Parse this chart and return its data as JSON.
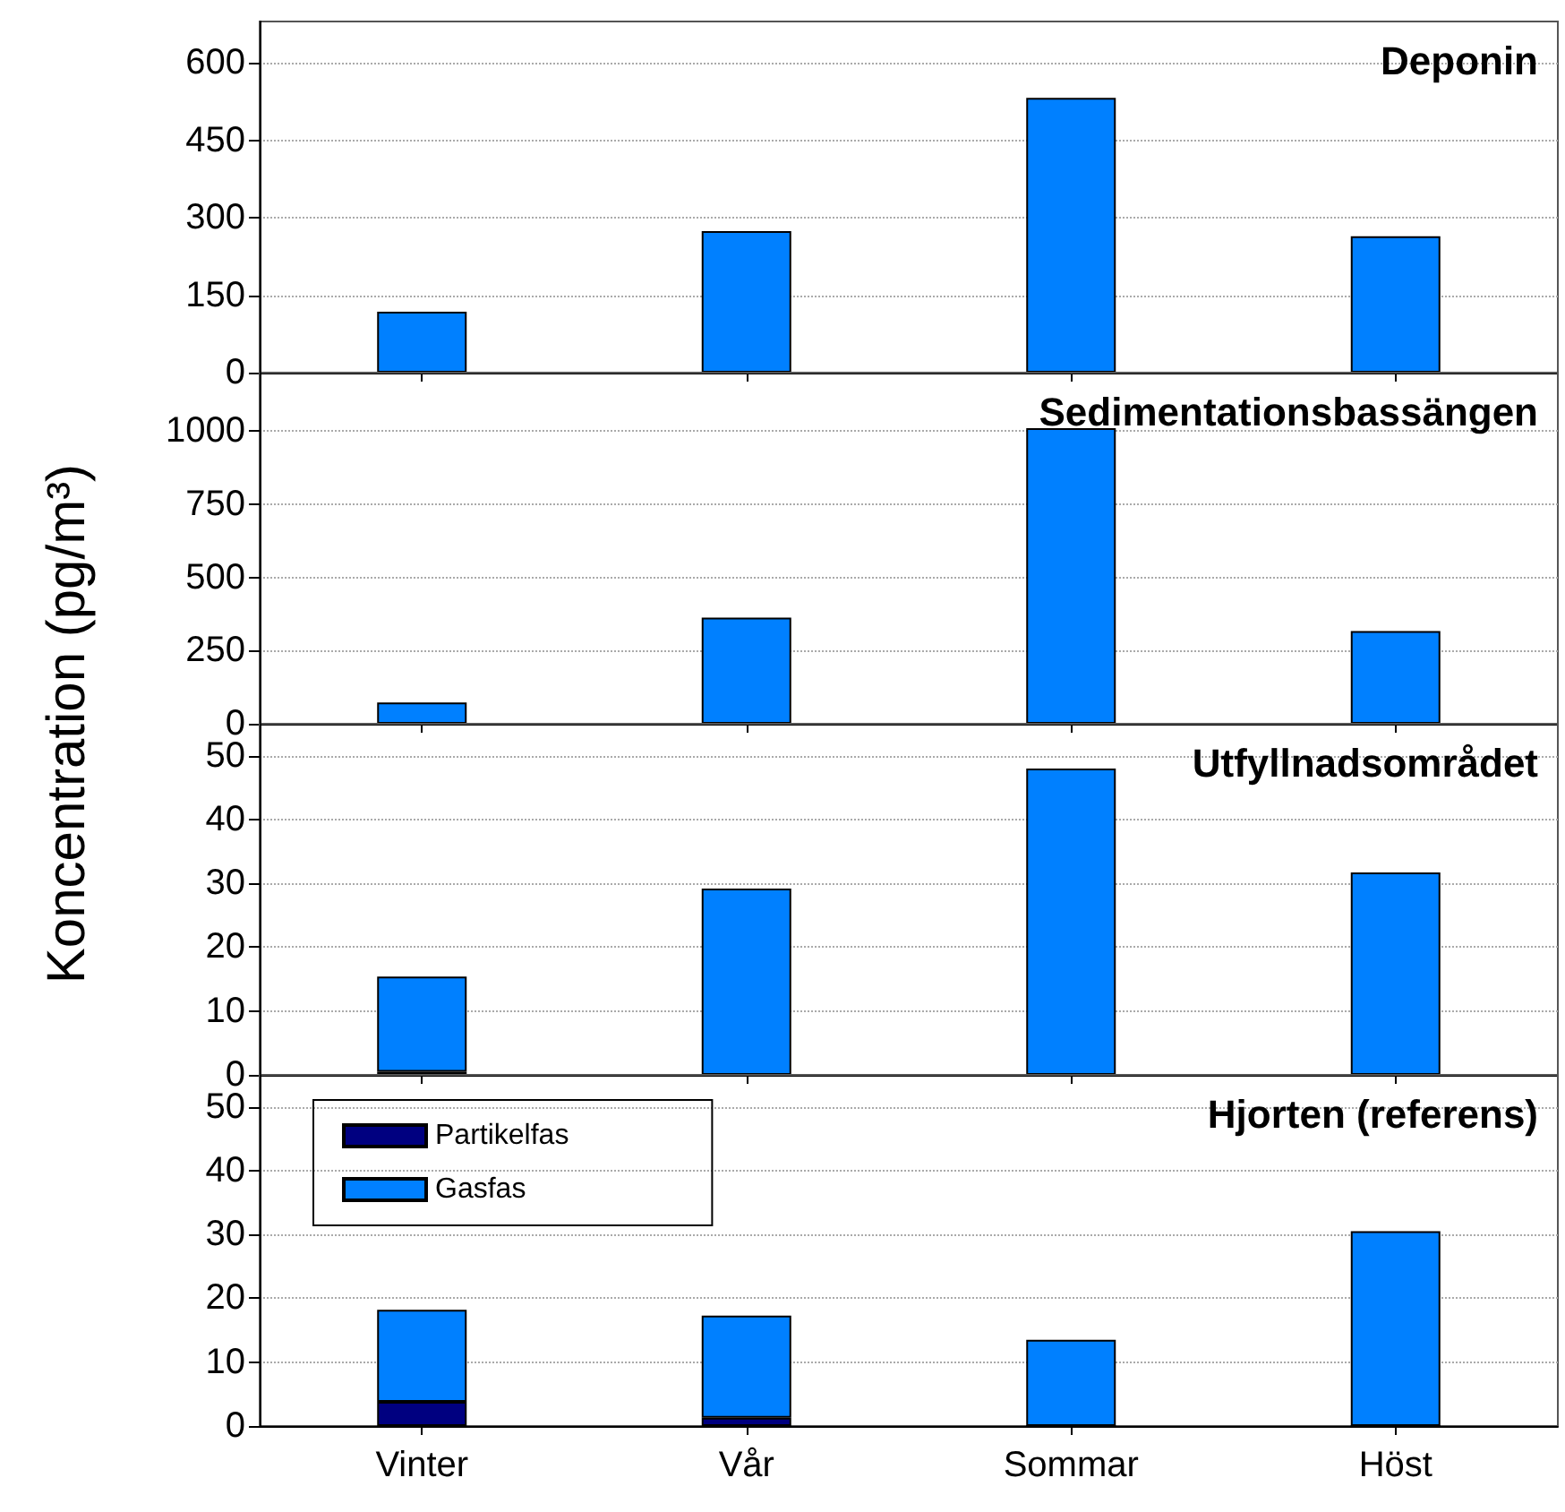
{
  "chart_data": [
    {
      "type": "bar",
      "title": "Deponin",
      "ylabel": "Koncentration (pg/m³)",
      "categories": [
        null,
        null,
        null,
        null
      ],
      "stacked": true,
      "series": [
        {
          "color": "#000080",
          "values": [
            0,
            0,
            0,
            0
          ]
        },
        {
          "color": "#0080ff",
          "values": [
            118,
            274,
            532,
            264
          ]
        }
      ],
      "ylim": [
        0,
        680
      ],
      "yticks": [
        0,
        150,
        300,
        450,
        600
      ],
      "grid": "y",
      "tick_labels": "y"
    },
    {
      "type": "bar",
      "title": "Sedimentationsbassängen",
      "categories": [
        null,
        null,
        null,
        null
      ],
      "stacked": true,
      "series": [
        {
          "color": "#000080",
          "values": [
            0,
            0,
            0,
            0
          ]
        },
        {
          "color": "#0080ff",
          "values": [
            73,
            363,
            1010,
            317
          ]
        }
      ],
      "ylim": [
        0,
        1200
      ],
      "yticks": [
        0,
        250,
        500,
        750,
        1000
      ],
      "grid": "y",
      "tick_labels": "y"
    },
    {
      "type": "bar",
      "title": "Utfyllnadsområdet",
      "categories": [
        null,
        null,
        null,
        null
      ],
      "stacked": true,
      "series": [
        {
          "color": "#000080",
          "values": [
            0.5,
            0,
            0,
            0
          ]
        },
        {
          "color": "#0080ff",
          "values": [
            14.9,
            29.2,
            48,
            31.7
          ]
        }
      ],
      "ylim": [
        0,
        55
      ],
      "yticks": [
        0,
        10,
        20,
        30,
        40,
        50
      ],
      "grid": "y",
      "tick_labels": "y"
    },
    {
      "type": "bar",
      "title": "Hjorten (referens)",
      "categories": [
        "Vinter",
        "Vår",
        "Sommar",
        "Höst"
      ],
      "stacked": true,
      "series": [
        {
          "name": "Partikelfas",
          "color": "#000080",
          "values": [
            3.8,
            1.3,
            0,
            0
          ]
        },
        {
          "name": "Gasfas",
          "color": "#0080ff",
          "values": [
            14.4,
            16,
            13.5,
            30.5
          ]
        }
      ],
      "ylim": [
        0,
        55
      ],
      "yticks": [
        0,
        10,
        20,
        30,
        40,
        50
      ],
      "grid": "y",
      "legend": "top left"
    }
  ]
}
